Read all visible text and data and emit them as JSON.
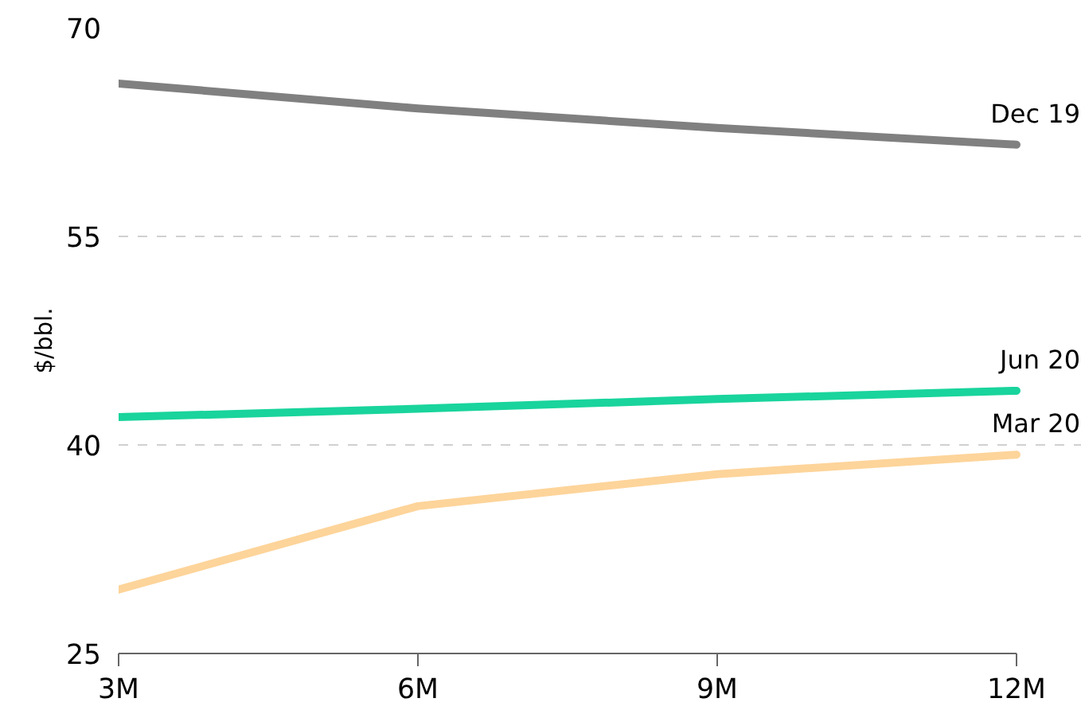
{
  "chart_data": {
    "type": "line",
    "ylabel": "$/bbl.",
    "categories": [
      "3M",
      "6M",
      "9M",
      "12M"
    ],
    "series": [
      {
        "name": "Dec 19",
        "color": "#808080",
        "values": [
          66.0,
          64.2,
          62.8,
          61.6
        ]
      },
      {
        "name": "Jun 20",
        "color": "#19d49c",
        "values": [
          42.0,
          42.6,
          43.3,
          43.9
        ]
      },
      {
        "name": "Mar 20",
        "color": "#fdd49a",
        "values": [
          29.6,
          35.6,
          37.9,
          39.3
        ]
      }
    ],
    "ylim": [
      25,
      70
    ],
    "yticks": [
      25,
      40,
      55,
      70
    ],
    "grid": "y",
    "legend": false,
    "marker": "none",
    "line_style": "solid"
  }
}
